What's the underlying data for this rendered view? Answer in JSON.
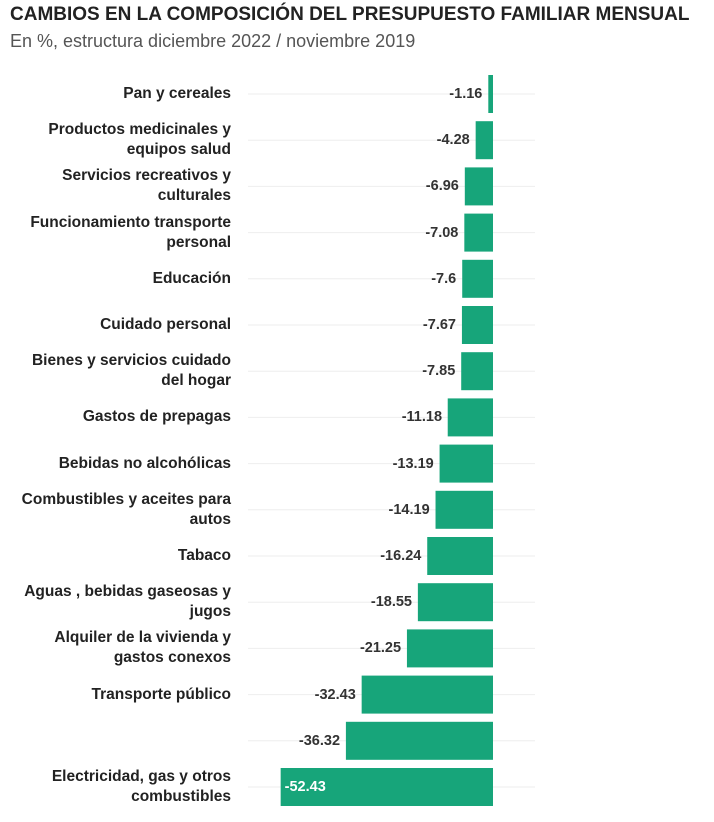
{
  "chart_data": {
    "type": "bar",
    "orientation": "horizontal",
    "title": "CAMBIOS EN LA COMPOSICIÓN DEL PRESUPUESTO FAMILIAR MENSUAL",
    "subtitle": "En %, estructura diciembre 2022 / noviembre 2019",
    "categories": [
      "Pan y cereales",
      "Productos medicinales y equipos salud",
      "Servicios recreativos y culturales",
      "Funcionamiento transporte personal",
      "Educación",
      "Cuidado personal",
      "Bienes y servicios cuidado del hogar",
      "Gastos de prepagas",
      "Bebidas no alcohólicas",
      "Combustibles y aceites para autos",
      "Tabaco",
      "Aguas , bebidas gaseosas y jugos",
      "Alquiler de la vivienda y gastos conexos",
      "Transporte público",
      null,
      "Electricidad, gas y otros combustibles"
    ],
    "values": [
      -1.16,
      -4.28,
      -6.96,
      -7.08,
      -7.6,
      -7.67,
      -7.85,
      -11.18,
      -13.19,
      -14.19,
      -16.24,
      -18.55,
      -21.25,
      -32.43,
      -36.32,
      -52.43
    ],
    "color": "#17a57a",
    "xlim": [
      -60,
      0
    ]
  }
}
